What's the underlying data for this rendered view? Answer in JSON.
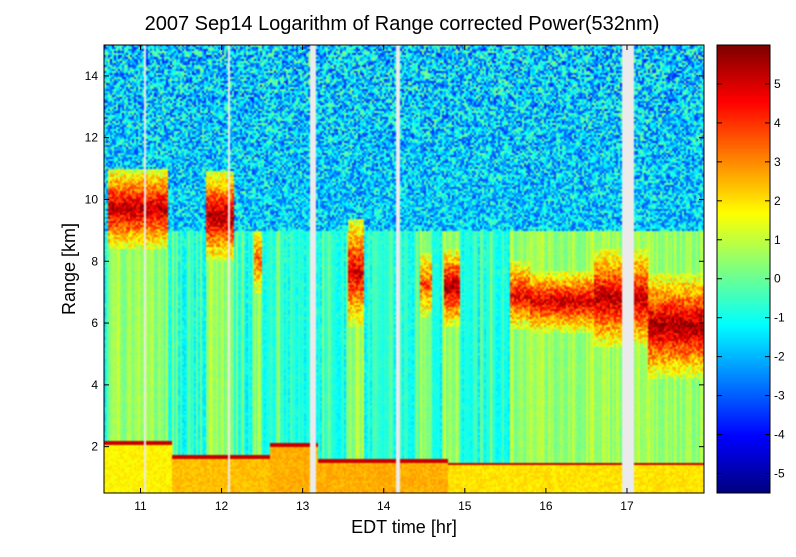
{
  "chart_data": {
    "type": "heatmap",
    "title": "2007 Sep14  Logarithm of Range corrected Power(532nm)",
    "xlabel": "EDT time [hr]",
    "ylabel": "Range [km]",
    "xlim": [
      10.55,
      17.95
    ],
    "ylim": [
      0.5,
      15.0
    ],
    "x_ticks": [
      11,
      12,
      13,
      14,
      15,
      16,
      17
    ],
    "y_ticks": [
      2,
      4,
      6,
      8,
      10,
      12,
      14
    ],
    "grid": false,
    "colorbar": {
      "colormap": "jet",
      "range": [
        -5.5,
        6.0
      ],
      "ticks": [
        5,
        4,
        3,
        2,
        1,
        0,
        -1,
        -2,
        -3,
        -4,
        -5
      ]
    },
    "background_noise_level": -2.0,
    "boundary_layer": [
      {
        "t0": 10.55,
        "t1": 11.4,
        "top": 2.2,
        "level": 1.8
      },
      {
        "t0": 11.4,
        "t1": 12.6,
        "top": 1.7,
        "level": 2.4
      },
      {
        "t0": 12.6,
        "t1": 13.2,
        "top": 2.1,
        "level": 2.6
      },
      {
        "t0": 13.2,
        "t1": 14.8,
        "top": 1.6,
        "level": 2.6
      },
      {
        "t0": 14.8,
        "t1": 17.95,
        "top": 1.5,
        "level": 2.0
      }
    ],
    "cloud_layers": [
      {
        "t0": 10.6,
        "t1": 11.35,
        "base": 8.4,
        "top": 11.0,
        "level": 4.5
      },
      {
        "t0": 11.8,
        "t1": 12.15,
        "base": 8.0,
        "top": 10.9,
        "level": 4.6
      },
      {
        "t0": 12.4,
        "t1": 12.5,
        "base": 7.0,
        "top": 9.0,
        "level": 2.5
      },
      {
        "t0": 13.55,
        "t1": 13.75,
        "base": 5.9,
        "top": 9.4,
        "level": 4.0
      },
      {
        "t0": 14.45,
        "t1": 14.6,
        "base": 6.2,
        "top": 8.3,
        "level": 2.8
      },
      {
        "t0": 14.75,
        "t1": 14.95,
        "base": 5.9,
        "top": 8.4,
        "level": 4.6
      },
      {
        "t0": 15.55,
        "t1": 15.8,
        "base": 5.8,
        "top": 8.0,
        "level": 3.8
      },
      {
        "t0": 15.8,
        "t1": 16.6,
        "base": 5.7,
        "top": 7.7,
        "level": 4.2
      },
      {
        "t0": 16.6,
        "t1": 17.25,
        "base": 5.2,
        "top": 8.4,
        "level": 4.4
      },
      {
        "t0": 17.25,
        "t1": 17.95,
        "base": 4.2,
        "top": 7.6,
        "level": 4.7
      }
    ],
    "data_gaps": [
      {
        "t0": 11.04,
        "t1": 11.07
      },
      {
        "t0": 12.07,
        "t1": 12.1
      },
      {
        "t0": 13.1,
        "t1": 13.16
      },
      {
        "t0": 14.16,
        "t1": 14.19
      },
      {
        "t0": 16.95,
        "t1": 17.08
      }
    ]
  }
}
